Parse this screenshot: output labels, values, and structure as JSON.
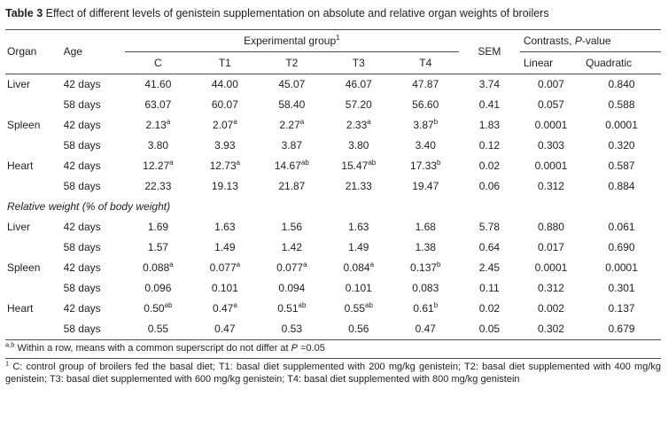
{
  "title": {
    "label": "Table 3",
    "text": "Effect of different levels of genistein supplementation on absolute and relative organ weights of broilers"
  },
  "table": {
    "header": {
      "organ": "Organ",
      "age": "Age",
      "experimental_group": "Experimental group",
      "experimental_group_sup": "1",
      "sem": "SEM",
      "contrasts_pre": "Contrasts, ",
      "contrasts_italic": "P",
      "contrasts_post": "-value",
      "groups": [
        "C",
        "T1",
        "T2",
        "T3",
        "T4"
      ],
      "contrast_columns": [
        "Linear",
        "Quadratic"
      ]
    },
    "sections": [
      {
        "label": "",
        "rows": [
          {
            "organ": "Liver",
            "age": "42 days",
            "values": [
              "41.60",
              "44.00",
              "45.07",
              "46.07",
              "47.87"
            ],
            "sem": "3.74",
            "linear": "0.007",
            "quadratic": "0.840"
          },
          {
            "organ": "",
            "age": "58 days",
            "values": [
              "63.07",
              "60.07",
              "58.40",
              "57.20",
              "56.60"
            ],
            "sem": "0.41",
            "linear": "0.057",
            "quadratic": "0.588"
          },
          {
            "organ": "Spleen",
            "age": "42 days",
            "values": [
              "2.13^a",
              "2.07^a",
              "2.27^a",
              "2.33^a",
              "3.87^b"
            ],
            "sem": "1.83",
            "linear": "0.0001",
            "quadratic": "0.0001"
          },
          {
            "organ": "",
            "age": "58 days",
            "values": [
              "3.80",
              "3.93",
              "3.87",
              "3.80",
              "3.40"
            ],
            "sem": "0.12",
            "linear": "0.303",
            "quadratic": "0.320"
          },
          {
            "organ": "Heart",
            "age": "42 days",
            "values": [
              "12.27^a",
              "12.73^a",
              "14.67^ab",
              "15.47^ab",
              "17.33^b"
            ],
            "sem": "0.02",
            "linear": "0.0001",
            "quadratic": "0.587"
          },
          {
            "organ": "",
            "age": "58 days",
            "values": [
              "22.33",
              "19.13",
              "21.87",
              "21.33",
              "19.47"
            ],
            "sem": "0.06",
            "linear": "0.312",
            "quadratic": "0.884"
          }
        ]
      },
      {
        "label": "Relative weight (% of body weight)",
        "rows": [
          {
            "organ": "Liver",
            "age": "42 days",
            "values": [
              "1.69",
              "1.63",
              "1.56",
              "1.63",
              "1.68"
            ],
            "sem": "5.78",
            "linear": "0.880",
            "quadratic": "0.061"
          },
          {
            "organ": "",
            "age": "58 days",
            "values": [
              "1.57",
              "1.49",
              "1.42",
              "1.49",
              "1.38"
            ],
            "sem": "0.64",
            "linear": "0.017",
            "quadratic": "0.690"
          },
          {
            "organ": "Spleen",
            "age": "42 days",
            "values": [
              "0.088^a",
              "0.077^a",
              "0.077^a",
              "0.084^a",
              "0.137^b"
            ],
            "sem": "2.45",
            "linear": "0.0001",
            "quadratic": "0.0001"
          },
          {
            "organ": "",
            "age": "58 days",
            "values": [
              "0.096",
              "0.101",
              "0.094",
              "0.101",
              "0.083"
            ],
            "sem": "0.11",
            "linear": "0.312",
            "quadratic": "0.301"
          },
          {
            "organ": "Heart",
            "age": "42 days",
            "values": [
              "0.50^ab",
              "0.47^a",
              "0.51^ab",
              "0.55^ab",
              "0.61^b"
            ],
            "sem": "0.02",
            "linear": "0.002",
            "quadratic": "0.137"
          },
          {
            "organ": "",
            "age": "58 days",
            "values": [
              "0.55",
              "0.47",
              "0.53",
              "0.56",
              "0.47"
            ],
            "sem": "0.05",
            "linear": "0.302",
            "quadratic": "0.679"
          }
        ]
      }
    ]
  },
  "footnotes": {
    "f1": {
      "sup": "a,b",
      "text": " Within a row, means with a common superscript do not differ at ",
      "italic": "P",
      "text2": " =0.05"
    },
    "f2": {
      "sup": "1",
      "text": " C: control group of broilers fed the basal diet; T1: basal diet supplemented with 200 mg/kg genistein; T2: basal diet supplemented with 400 mg/kg genistein; T3: basal diet supplemented with 600 mg/kg genistein; T4: basal diet supplemented with 800 mg/kg genistein"
    }
  }
}
